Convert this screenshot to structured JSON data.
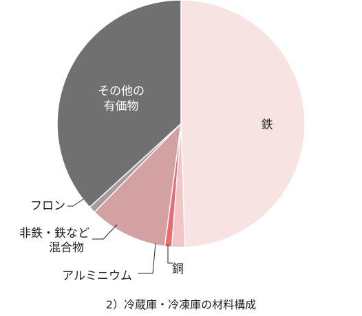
{
  "chart_data": {
    "type": "pie",
    "title": "2）冷蔵庫・冷凍庫の材料構成",
    "slices": [
      {
        "label": "鉄",
        "value": 49.5,
        "color": "#f8e3e3",
        "label_color": "#222222"
      },
      {
        "label": "銅",
        "value": 1.7,
        "color": "#f3c3c5",
        "label_color": "#222222"
      },
      {
        "label": "アルミニウム",
        "value": 0.9,
        "color": "#ea6b6d",
        "label_color": "#222222"
      },
      {
        "label": "非鉄・鉄など\n混合物",
        "value": 10.2,
        "color": "#d4a1a3",
        "label_color": "#222222"
      },
      {
        "label": "フロン",
        "value": 0.9,
        "color": "#a89a9b",
        "label_color": "#222222"
      },
      {
        "label": "その他の\n有価物",
        "value": 36.8,
        "color": "#707070",
        "label_color": "#ffffff"
      }
    ],
    "legend": "none"
  }
}
